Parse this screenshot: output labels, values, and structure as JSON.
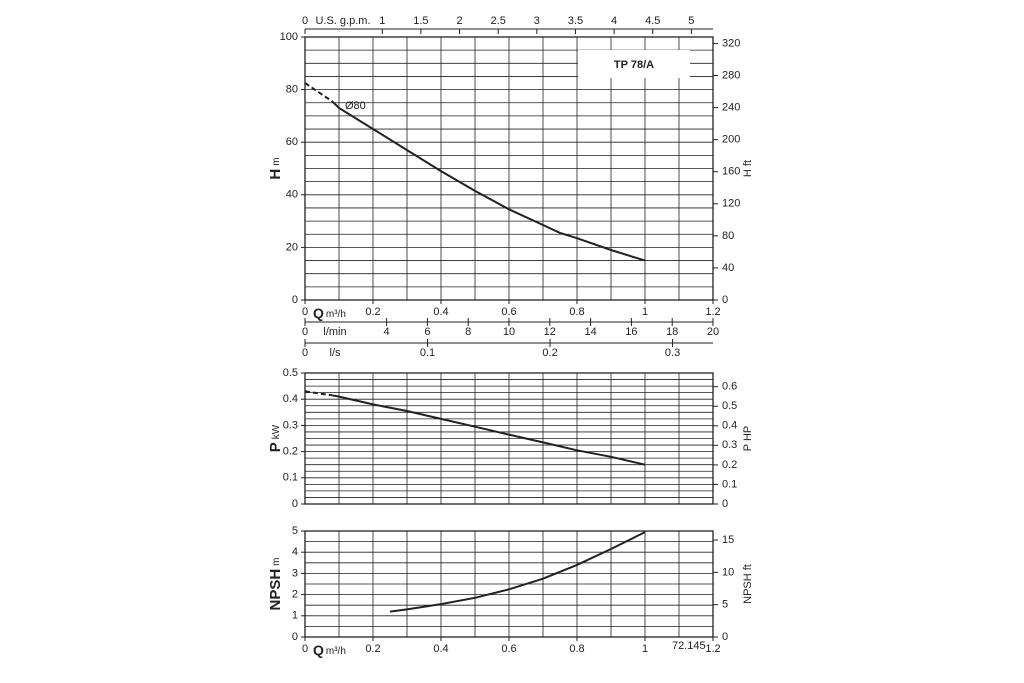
{
  "chart_data": [
    {
      "type": "line",
      "title": "TP 78/A",
      "annotation": "Ø80",
      "xlabel": "Q",
      "xlabel_unit": "m³/h",
      "ylabel": "H",
      "ylabel_unit": "m",
      "y2label": "H ft",
      "xlim": [
        0,
        1.2
      ],
      "xticks": [
        0,
        0.2,
        0.4,
        0.6,
        0.8,
        1,
        1.2
      ],
      "ylim": [
        0,
        100
      ],
      "yticks": [
        0,
        20,
        40,
        60,
        80,
        100
      ],
      "y2lim": [
        0,
        328
      ],
      "y2ticks": [
        0,
        40,
        80,
        120,
        160,
        200,
        240,
        280,
        320
      ],
      "grid_step": [
        0.1,
        5
      ],
      "top_axis": {
        "label": "U.S. g.p.m.",
        "lim": [
          0,
          5.28
        ],
        "ticks": [
          0,
          1,
          1.5,
          2,
          2.5,
          3,
          3.5,
          4,
          4.5,
          5
        ]
      },
      "flow_axes": [
        {
          "label": "l/min",
          "lim": [
            0,
            20
          ],
          "ticks": [
            0,
            4,
            6,
            8,
            10,
            12,
            14,
            16,
            18,
            20
          ]
        },
        {
          "label": "l/s",
          "lim": [
            0,
            0.333
          ],
          "ticks": [
            0,
            0.1,
            0.2,
            0.3
          ]
        }
      ],
      "series": [
        {
          "color": "#222222",
          "dashed": true,
          "x": [
            0,
            0.04,
            0.08
          ],
          "values": [
            82.5,
            79,
            75.5
          ]
        },
        {
          "color": "#222222",
          "dashed": false,
          "x": [
            0.08,
            0.1,
            0.2,
            0.3,
            0.4,
            0.5,
            0.6,
            0.7,
            0.75,
            0.8,
            0.9,
            1
          ],
          "values": [
            75.5,
            73,
            65,
            57,
            49,
            41.5,
            34.5,
            28.5,
            25.5,
            23.5,
            19,
            15
          ]
        }
      ]
    },
    {
      "type": "line",
      "ylabel": "P",
      "ylabel_unit": "kW",
      "y2label": "P HP",
      "xlim": [
        0,
        1.2
      ],
      "ylim": [
        0,
        0.5
      ],
      "yticks": [
        0,
        0.1,
        0.2,
        0.3,
        0.4,
        0.5
      ],
      "y2lim": [
        0,
        0.67
      ],
      "y2ticks": [
        0,
        0.1,
        0.2,
        0.3,
        0.4,
        0.5,
        0.6
      ],
      "grid_step": [
        0.1,
        0.025
      ],
      "series": [
        {
          "color": "#222222",
          "dashed": true,
          "x": [
            0,
            0.04,
            0.08
          ],
          "values": [
            0.43,
            0.422,
            0.415
          ]
        },
        {
          "color": "#222222",
          "dashed": false,
          "x": [
            0.08,
            0.1,
            0.2,
            0.3,
            0.4,
            0.5,
            0.6,
            0.7,
            0.8,
            0.9,
            1
          ],
          "values": [
            0.415,
            0.41,
            0.38,
            0.355,
            0.325,
            0.295,
            0.265,
            0.235,
            0.205,
            0.18,
            0.15
          ]
        }
      ]
    },
    {
      "type": "line",
      "annotation": "72.145",
      "xlabel": "Q",
      "xlabel_unit": "m³/h",
      "ylabel": "NPSH",
      "ylabel_unit": "m",
      "y2label": "NPSH ft",
      "xlim": [
        0,
        1.2
      ],
      "xticks": [
        0,
        0.2,
        0.4,
        0.6,
        0.8,
        1,
        1.2
      ],
      "ylim": [
        0,
        5
      ],
      "yticks": [
        0,
        1,
        2,
        3,
        4,
        5
      ],
      "y2lim": [
        0,
        16.4
      ],
      "y2ticks": [
        0,
        5,
        10,
        15
      ],
      "grid_step": [
        0.1,
        0.5
      ],
      "series": [
        {
          "color": "#222222",
          "dashed": false,
          "x": [
            0.25,
            0.3,
            0.4,
            0.5,
            0.6,
            0.7,
            0.8,
            0.9,
            1
          ],
          "values": [
            1.2,
            1.3,
            1.55,
            1.85,
            2.25,
            2.75,
            3.4,
            4.15,
            4.95
          ]
        }
      ]
    }
  ]
}
